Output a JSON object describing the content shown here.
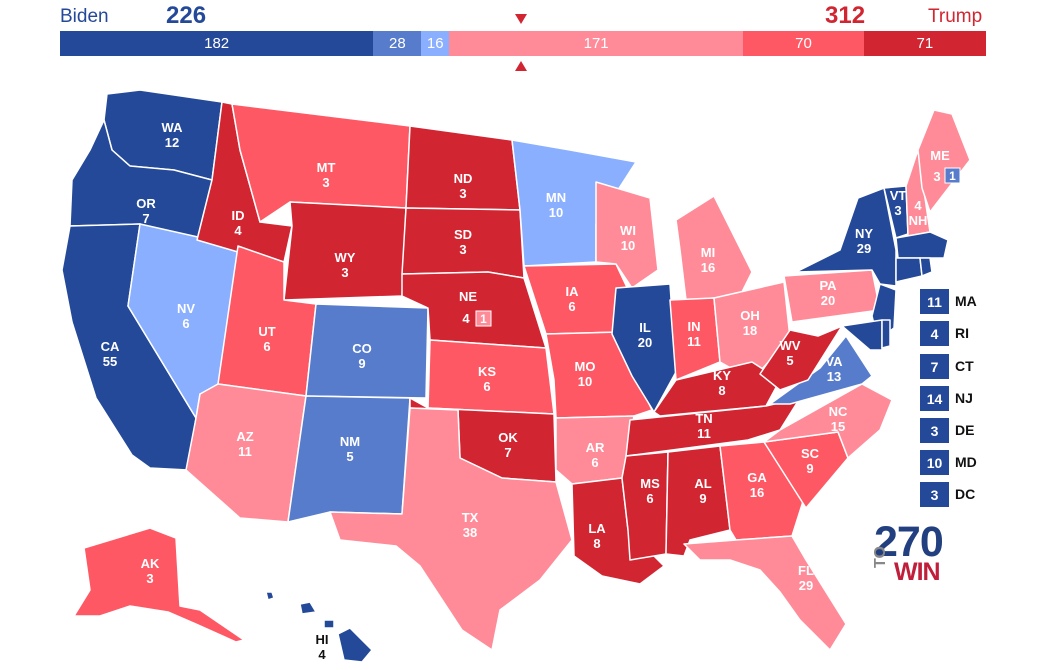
{
  "header": {
    "dem_name": "Biden",
    "dem_ev": "226",
    "rep_ev": "312",
    "rep_name": "Trump"
  },
  "colors": {
    "safe_d": "#244999",
    "likely_d": "#577ccc",
    "lean_d": "#8aafff",
    "lean_r": "#ff8b98",
    "likely_r": "#ff5865",
    "safe_r": "#d22532"
  },
  "bar_segments": [
    {
      "value": 182,
      "rating": "safe_d"
    },
    {
      "value": 28,
      "rating": "likely_d"
    },
    {
      "value": 16,
      "rating": "lean_d"
    },
    {
      "value": 171,
      "rating": "lean_r"
    },
    {
      "value": 70,
      "rating": "likely_r"
    },
    {
      "value": 71,
      "rating": "safe_r"
    }
  ],
  "states": [
    {
      "abbr": "WA",
      "ev": "12",
      "rating": "safe_d"
    },
    {
      "abbr": "OR",
      "ev": "7",
      "rating": "safe_d"
    },
    {
      "abbr": "CA",
      "ev": "55",
      "rating": "safe_d"
    },
    {
      "abbr": "NV",
      "ev": "6",
      "rating": "lean_d"
    },
    {
      "abbr": "ID",
      "ev": "4",
      "rating": "safe_r"
    },
    {
      "abbr": "MT",
      "ev": "3",
      "rating": "likely_r"
    },
    {
      "abbr": "WY",
      "ev": "3",
      "rating": "safe_r"
    },
    {
      "abbr": "UT",
      "ev": "6",
      "rating": "likely_r"
    },
    {
      "abbr": "AZ",
      "ev": "11",
      "rating": "lean_r"
    },
    {
      "abbr": "CO",
      "ev": "9",
      "rating": "likely_d"
    },
    {
      "abbr": "NM",
      "ev": "5",
      "rating": "likely_d"
    },
    {
      "abbr": "ND",
      "ev": "3",
      "rating": "safe_r"
    },
    {
      "abbr": "SD",
      "ev": "3",
      "rating": "safe_r"
    },
    {
      "abbr": "NE",
      "ev": "4",
      "rating": "safe_r"
    },
    {
      "abbr": "KS",
      "ev": "6",
      "rating": "likely_r"
    },
    {
      "abbr": "OK",
      "ev": "7",
      "rating": "safe_r"
    },
    {
      "abbr": "TX",
      "ev": "38",
      "rating": "lean_r"
    },
    {
      "abbr": "MN",
      "ev": "10",
      "rating": "lean_d"
    },
    {
      "abbr": "IA",
      "ev": "6",
      "rating": "likely_r"
    },
    {
      "abbr": "MO",
      "ev": "10",
      "rating": "likely_r"
    },
    {
      "abbr": "AR",
      "ev": "6",
      "rating": "lean_r"
    },
    {
      "abbr": "LA",
      "ev": "8",
      "rating": "safe_r"
    },
    {
      "abbr": "WI",
      "ev": "10",
      "rating": "lean_r"
    },
    {
      "abbr": "IL",
      "ev": "20",
      "rating": "safe_d"
    },
    {
      "abbr": "MI",
      "ev": "16",
      "rating": "lean_r"
    },
    {
      "abbr": "IN",
      "ev": "11",
      "rating": "likely_r"
    },
    {
      "abbr": "OH",
      "ev": "18",
      "rating": "lean_r"
    },
    {
      "abbr": "KY",
      "ev": "8",
      "rating": "safe_r"
    },
    {
      "abbr": "TN",
      "ev": "11",
      "rating": "safe_r"
    },
    {
      "abbr": "MS",
      "ev": "6",
      "rating": "safe_r"
    },
    {
      "abbr": "AL",
      "ev": "9",
      "rating": "safe_r"
    },
    {
      "abbr": "GA",
      "ev": "16",
      "rating": "likely_r"
    },
    {
      "abbr": "FL",
      "ev": "29",
      "rating": "lean_r"
    },
    {
      "abbr": "SC",
      "ev": "9",
      "rating": "likely_r"
    },
    {
      "abbr": "NC",
      "ev": "15",
      "rating": "lean_r"
    },
    {
      "abbr": "VA",
      "ev": "13",
      "rating": "likely_d"
    },
    {
      "abbr": "WV",
      "ev": "5",
      "rating": "safe_r"
    },
    {
      "abbr": "PA",
      "ev": "20",
      "rating": "lean_r"
    },
    {
      "abbr": "NY",
      "ev": "29",
      "rating": "safe_d"
    },
    {
      "abbr": "VT",
      "ev": "3",
      "rating": "safe_d"
    },
    {
      "abbr": "NH",
      "ev": "4",
      "rating": "lean_r"
    },
    {
      "abbr": "ME",
      "ev": "3",
      "rating": "lean_r"
    },
    {
      "abbr": "AK",
      "ev": "3",
      "rating": "likely_r"
    },
    {
      "abbr": "HI",
      "ev": "4",
      "rating": "safe_d"
    }
  ],
  "district_boxes": [
    {
      "state": "NE",
      "value": "1",
      "rating": "lean_r"
    },
    {
      "state": "ME",
      "value": "1",
      "rating": "likely_d"
    }
  ],
  "small_states": [
    {
      "abbr": "MA",
      "ev": "11",
      "rating": "safe_d"
    },
    {
      "abbr": "RI",
      "ev": "4",
      "rating": "safe_d"
    },
    {
      "abbr": "CT",
      "ev": "7",
      "rating": "safe_d"
    },
    {
      "abbr": "NJ",
      "ev": "14",
      "rating": "safe_d"
    },
    {
      "abbr": "DE",
      "ev": "3",
      "rating": "safe_d"
    },
    {
      "abbr": "MD",
      "ev": "10",
      "rating": "safe_d"
    },
    {
      "abbr": "DC",
      "ev": "3",
      "rating": "safe_d"
    }
  ],
  "logo": {
    "number": "270",
    "to": "TO",
    "win": "WIN"
  }
}
